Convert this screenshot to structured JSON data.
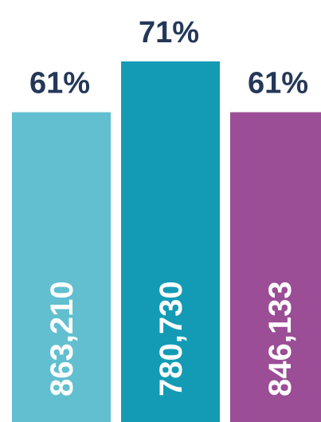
{
  "chart_data": {
    "type": "bar",
    "series": [
      {
        "name": null,
        "values": [
          61,
          71,
          61
        ],
        "value_labels": [
          "61%",
          "71%",
          "61%"
        ]
      }
    ],
    "colors": [
      "#62bfcf",
      "#139bb6",
      "#9b4d96"
    ],
    "counts": [
      863210,
      780730,
      846133
    ],
    "count_labels": [
      "863,210",
      "780,730",
      "846,133"
    ]
  }
}
